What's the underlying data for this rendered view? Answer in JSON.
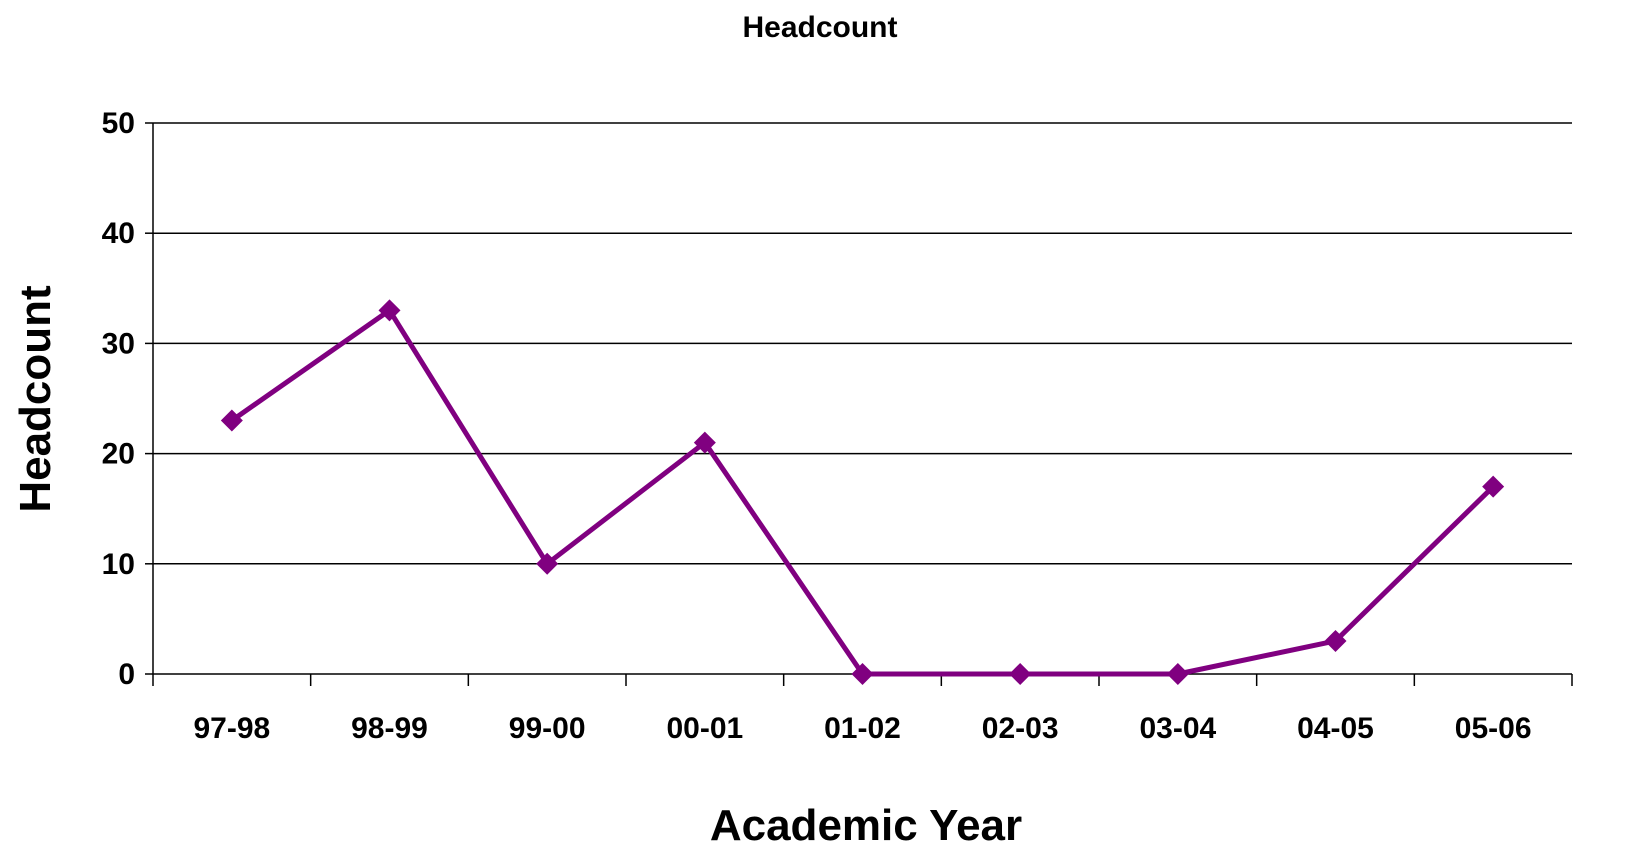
{
  "chart_data": {
    "type": "line",
    "title": "Headcount",
    "xlabel": "Academic Year",
    "ylabel": "Headcount",
    "categories": [
      "97-98",
      "98-99",
      "99-00",
      "00-01",
      "01-02",
      "02-03",
      "03-04",
      "04-05",
      "05-06"
    ],
    "series": [
      {
        "values": [
          23,
          33,
          10,
          21,
          0,
          0,
          0,
          3,
          17
        ]
      }
    ],
    "ylim": [
      0,
      50
    ],
    "yticks": [
      0,
      10,
      20,
      30,
      40,
      50
    ],
    "grid": true,
    "legend": "none",
    "colors": {
      "series": "#800080"
    }
  }
}
